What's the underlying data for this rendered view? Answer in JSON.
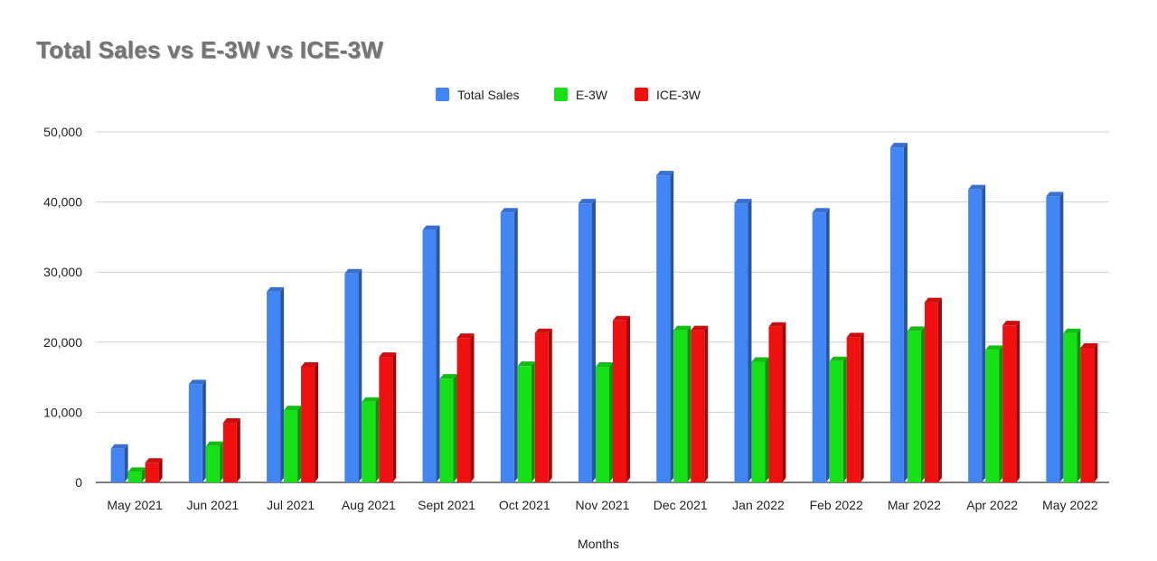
{
  "chart_data": {
    "type": "bar",
    "title": "Total Sales vs E-3W vs ICE-3W",
    "xlabel": "Months",
    "ylabel": "",
    "ylim": [
      0,
      50000
    ],
    "yticks": [
      0,
      10000,
      20000,
      30000,
      40000,
      50000
    ],
    "ytick_labels": [
      "0",
      "10,000",
      "20,000",
      "30,000",
      "40,000",
      "50,000"
    ],
    "grid": true,
    "legend_position": "top-center",
    "categories": [
      "May 2021",
      "Jun 2021",
      "Jul 2021",
      "Aug 2021",
      "Sept 2021",
      "Oct 2021",
      "Nov 2021",
      "Dec 2021",
      "Jan 2022",
      "Feb 2022",
      "Mar 2022",
      "Apr 2022",
      "May 2022"
    ],
    "series": [
      {
        "name": "Total Sales",
        "color": "#4285F4",
        "values": [
          4800,
          14000,
          27200,
          29800,
          36000,
          38500,
          39800,
          43800,
          39800,
          38500,
          47800,
          41800,
          40800
        ]
      },
      {
        "name": "E-3W",
        "color": "#16E016",
        "values": [
          1500,
          5200,
          10300,
          11500,
          14800,
          16600,
          16500,
          21700,
          17200,
          17300,
          21600,
          18900,
          21300
        ]
      },
      {
        "name": "ICE-3W",
        "color": "#F01010",
        "values": [
          2800,
          8500,
          16500,
          17900,
          20600,
          21300,
          23100,
          21700,
          22200,
          20700,
          25700,
          22400,
          19200
        ]
      }
    ]
  }
}
